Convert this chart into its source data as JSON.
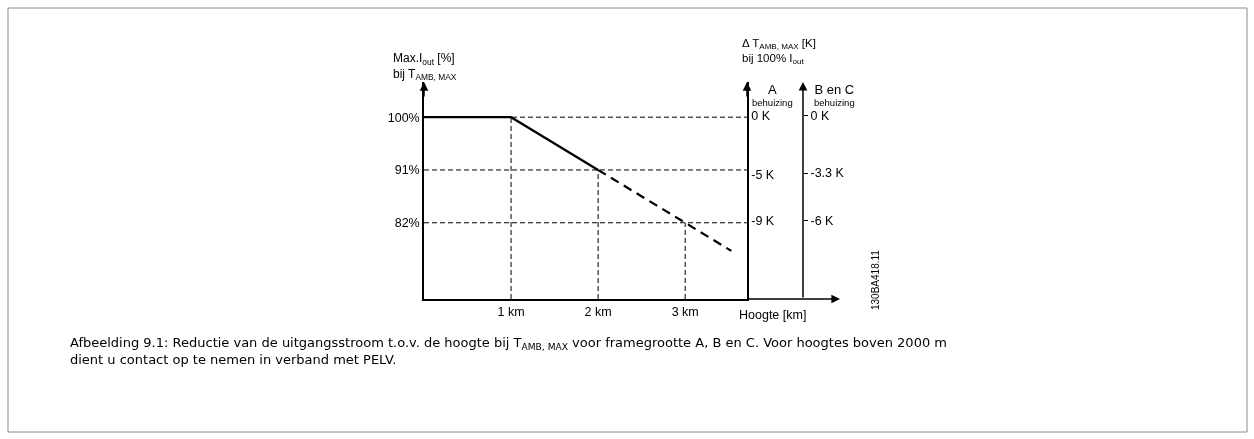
{
  "chart_data": {
    "type": "line",
    "ylabel": "Max.I$_{out}$ [%]\nbij T$_{AMB, MAX}$",
    "xlabel": "Hoogte [km]",
    "y2label": "A\nbehuizing",
    "y3label": "B en C\nbehuizing",
    "annotations": [
      "Δ T$_{AMB, MAX}$ [K]\nbij 100% I$_{out}$",
      "130BA418.11",
      "Afbeelding 9.1: Reductie van de uitgangsstroom t.o.v. de hoogte bij T$_{AMB, MAX}$ voor framegrootte A, B en C. Voor hoogtes boven 2000 m dient u contact op te nemen in verband met PELV."
    ],
    "xlim": [
      0,
      3.71
    ],
    "xticks": [
      {
        "value": 1,
        "label": "1 km"
      },
      {
        "value": 2,
        "label": "2 km"
      },
      {
        "value": 3,
        "label": "3 km"
      }
    ],
    "ylim": [
      69,
      106
    ],
    "yticks": [
      {
        "value": 100,
        "label": "100%"
      },
      {
        "value": 91,
        "label": "91%"
      },
      {
        "value": 82,
        "label": "82%"
      }
    ],
    "y2lim": [
      -15.7,
      2.9
    ],
    "y2ticks": [
      {
        "value": 0,
        "label": "0 K"
      },
      {
        "value": -5,
        "label": "-5 K"
      },
      {
        "value": -9,
        "label": "-9 K"
      }
    ],
    "y3lim": [
      -10.5,
      1.9
    ],
    "y3ticks": [
      {
        "value": 0,
        "label": "0 K"
      },
      {
        "value": -3.3,
        "label": "-3.3 K"
      },
      {
        "value": -6,
        "label": "-6 K"
      }
    ],
    "series": [
      {
        "color": "#000000",
        "x": [
          0,
          1,
          2
        ],
        "values": [
          100,
          100,
          91
        ],
        "line_style": "solid"
      },
      {
        "color": "#000000",
        "x": [
          2,
          3,
          3.53
        ],
        "values": [
          91,
          82,
          77.2
        ],
        "line_style": "dashed"
      }
    ],
    "ref_lines": [
      {
        "axis": "y",
        "value": 100,
        "line_style": "dashed",
        "color": "#000000"
      },
      {
        "axis": "y",
        "value": 91,
        "line_style": "dashed",
        "color": "#000000"
      },
      {
        "axis": "y",
        "value": 82,
        "line_style": "dashed",
        "color": "#000000"
      },
      {
        "axis": "x",
        "value": 1,
        "line_style": "dashed",
        "color": "#000000"
      },
      {
        "axis": "x",
        "value": 2,
        "line_style": "dashed",
        "color": "#000000"
      },
      {
        "axis": "x",
        "value": 3,
        "line_style": "dashed",
        "color": "#000000"
      }
    ],
    "marker": "none",
    "grid": false
  }
}
